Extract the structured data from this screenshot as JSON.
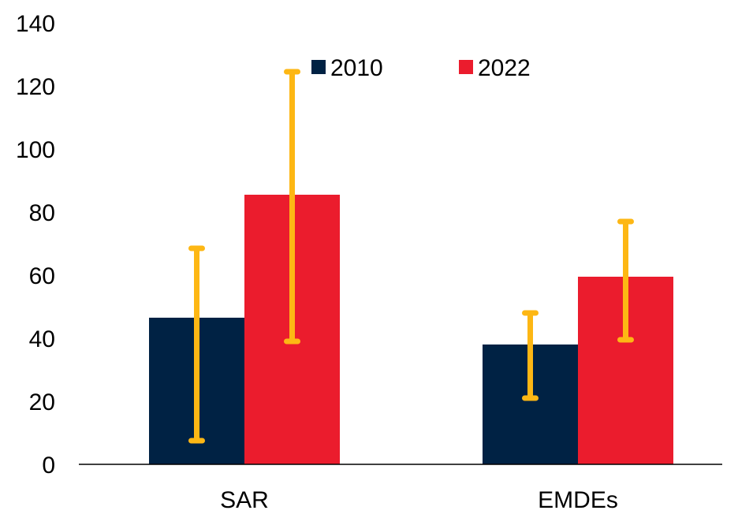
{
  "chart_data": {
    "type": "bar",
    "title": "",
    "xlabel": "",
    "ylabel": "",
    "categories": [
      "SAR",
      "EMDEs"
    ],
    "ylim": [
      0,
      140
    ],
    "yticks": [
      0,
      20,
      40,
      60,
      80,
      100,
      120,
      140
    ],
    "grid": false,
    "legend_position": "top",
    "series": [
      {
        "name": "2010",
        "color": "#002244",
        "values": [
          46.5,
          38
        ],
        "error_low": [
          7.5,
          21
        ],
        "error_high": [
          68.5,
          48
        ]
      },
      {
        "name": "2022",
        "color": "#EB1C2D",
        "values": [
          85.5,
          59.5
        ],
        "error_low": [
          39,
          39.5
        ],
        "error_high": [
          124.5,
          77
        ]
      }
    ],
    "error_bar_color": "#FDB714"
  }
}
